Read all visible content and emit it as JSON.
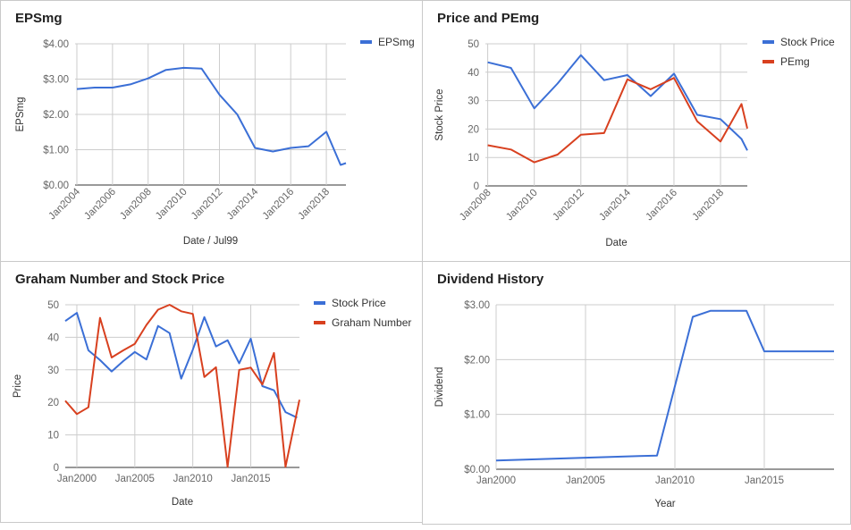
{
  "colors": {
    "blue": "#3b6fd6",
    "red": "#d8401f",
    "grid": "#cccccc"
  },
  "chart_data": [
    {
      "id": "eps",
      "type": "line",
      "title": "EPSmg",
      "xlabel": "Date / Jul99",
      "ylabel": "EPSmg",
      "x_ticks": [
        "Jan2004",
        "Jan2006",
        "Jan2008",
        "Jan2010",
        "Jan2012",
        "Jan2014",
        "Jan2016",
        "Jan2018"
      ],
      "x_tick_values": [
        2004,
        2006,
        2008,
        2010,
        2012,
        2014,
        2016,
        2018
      ],
      "x_range": [
        2003.9,
        2019.1
      ],
      "y_ticks": [
        "$0.00",
        "$1.00",
        "$2.00",
        "$3.00",
        "$4.00"
      ],
      "y_tick_values": [
        0,
        1,
        2,
        3,
        4
      ],
      "ylim": [
        0,
        4
      ],
      "legend_position": "right",
      "series": [
        {
          "name": "EPSmg",
          "color": "#3b6fd6",
          "x": [
            2004,
            2005,
            2006,
            2007,
            2008,
            2009,
            2010,
            2011,
            2012,
            2013,
            2014,
            2015,
            2016,
            2017,
            2018,
            2018.8,
            2019.1
          ],
          "y": [
            2.72,
            2.76,
            2.76,
            2.85,
            3.02,
            3.26,
            3.32,
            3.3,
            2.56,
            2.0,
            1.05,
            0.95,
            1.05,
            1.1,
            1.51,
            0.57,
            0.62
          ]
        }
      ]
    },
    {
      "id": "pe",
      "type": "line",
      "title": "Price and PEmg",
      "xlabel": "Date",
      "ylabel": "Stock Price",
      "x_ticks": [
        "Jan2008",
        "Jan2010",
        "Jan2012",
        "Jan2014",
        "Jan2016",
        "Jan2018"
      ],
      "x_tick_values": [
        2008,
        2010,
        2012,
        2014,
        2016,
        2018
      ],
      "x_range": [
        2007.9,
        2019.15
      ],
      "y_ticks": [
        "0",
        "10",
        "20",
        "30",
        "40",
        "50"
      ],
      "y_tick_values": [
        0,
        10,
        20,
        30,
        40,
        50
      ],
      "ylim": [
        0,
        50
      ],
      "legend_position": "right",
      "series": [
        {
          "name": "Stock Price",
          "color": "#3b6fd6",
          "x": [
            2008,
            2009,
            2010,
            2011,
            2012,
            2013,
            2014,
            2015,
            2016,
            2017,
            2018,
            2018.9,
            2019.15
          ],
          "y": [
            43.5,
            41.5,
            27.3,
            36.0,
            46.0,
            37.2,
            39.0,
            31.6,
            39.5,
            25.0,
            23.5,
            16.5,
            12.5
          ]
        },
        {
          "name": "PEmg",
          "color": "#d8401f",
          "x": [
            2008,
            2009,
            2010,
            2011,
            2012,
            2013,
            2014,
            2015,
            2016,
            2017,
            2018,
            2018.9,
            2019.15
          ],
          "y": [
            14.3,
            12.8,
            8.3,
            11.0,
            18.0,
            18.6,
            37.5,
            34.0,
            38.0,
            22.7,
            15.6,
            28.8,
            20.2
          ]
        }
      ]
    },
    {
      "id": "graham",
      "type": "line",
      "title": "Graham Number and Stock Price",
      "xlabel": "Date",
      "ylabel": "Price",
      "x_ticks": [
        "Jan2000",
        "Jan2005",
        "Jan2010",
        "Jan2015"
      ],
      "x_tick_values": [
        2000,
        2005,
        2010,
        2015
      ],
      "x_range": [
        1999,
        2019.2
      ],
      "y_ticks": [
        "0",
        "10",
        "20",
        "30",
        "40",
        "50"
      ],
      "y_tick_values": [
        0,
        10,
        20,
        30,
        40,
        50
      ],
      "ylim": [
        0,
        50
      ],
      "legend_position": "right",
      "series": [
        {
          "name": "Stock Price",
          "color": "#3b6fd6",
          "x": [
            1999,
            2000,
            2001,
            2002,
            2003,
            2004,
            2005,
            2006,
            2007,
            2008,
            2009,
            2010,
            2011,
            2012,
            2013,
            2014,
            2015,
            2016,
            2017,
            2018,
            2019
          ],
          "y": [
            45,
            47.5,
            36,
            33,
            29.5,
            32.7,
            35.5,
            33.2,
            43.5,
            41.3,
            27.3,
            36.2,
            46.2,
            37.2,
            39.1,
            32.0,
            39.6,
            25.0,
            23.7,
            17.0,
            15.3
          ]
        },
        {
          "name": "Graham Number",
          "color": "#d8401f",
          "x": [
            1999,
            2000,
            2001,
            2002,
            2003,
            2004,
            2005,
            2006,
            2007,
            2008,
            2009,
            2010,
            2011,
            2012,
            2013,
            2014,
            2015,
            2016,
            2017,
            2018,
            2019.2
          ],
          "y": [
            20.5,
            16.4,
            18.5,
            46.0,
            33.8,
            36.0,
            38.0,
            43.8,
            48.5,
            50.0,
            48.0,
            47.2,
            27.8,
            30.8,
            0.2,
            30.0,
            30.7,
            25.5,
            35.2,
            0.2,
            20.8
          ]
        }
      ]
    },
    {
      "id": "div",
      "type": "line",
      "title": "Dividend History",
      "xlabel": "Year",
      "ylabel": "Dividend",
      "x_ticks": [
        "Jan2000",
        "Jan2005",
        "Jan2010",
        "Jan2015"
      ],
      "x_tick_values": [
        2000,
        2005,
        2010,
        2015
      ],
      "x_range": [
        2000,
        2018.9
      ],
      "y_ticks": [
        "$0.00",
        "$1.00",
        "$2.00",
        "$3.00"
      ],
      "y_tick_values": [
        0,
        1,
        2,
        3
      ],
      "ylim": [
        0,
        3
      ],
      "legend_position": "none",
      "series": [
        {
          "name": "",
          "color": "#3b6fd6",
          "x": [
            2000,
            2002,
            2004,
            2006,
            2008,
            2009,
            2011,
            2012,
            2013,
            2014,
            2015,
            2016,
            2017,
            2018,
            2018.9
          ],
          "y": [
            0.16,
            0.18,
            0.2,
            0.22,
            0.24,
            0.25,
            2.78,
            2.89,
            2.89,
            2.89,
            2.15,
            2.15,
            2.15,
            2.15,
            2.15
          ]
        }
      ]
    }
  ]
}
